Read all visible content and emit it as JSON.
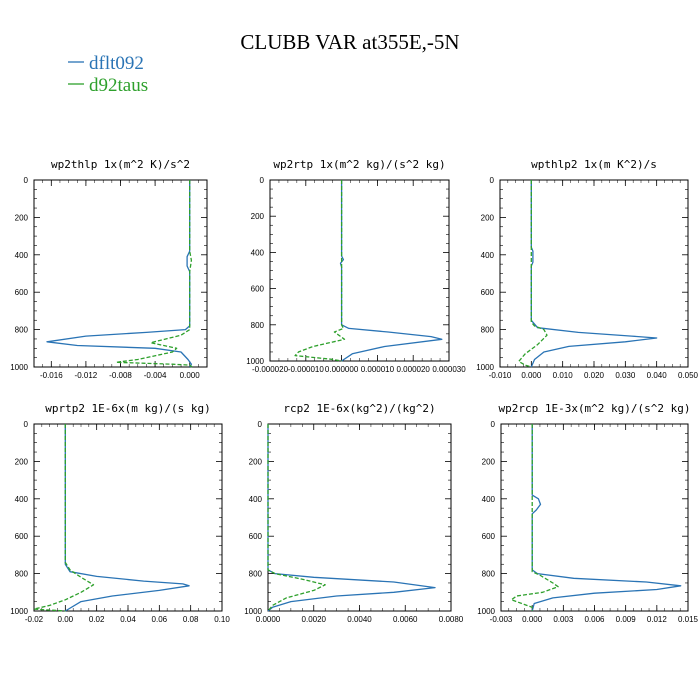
{
  "title": "CLUBB VAR at355E,-5N",
  "colors": {
    "dflt092": "#2a74b5",
    "d92taus": "#2ea02c",
    "axis": "#000000"
  },
  "legend": [
    {
      "name": "dflt092",
      "color": "#2a74b5",
      "style": "solid"
    },
    {
      "name": "d92taus",
      "color": "#2ea02c",
      "style": "dashed"
    }
  ],
  "chart_data": [
    {
      "type": "line",
      "title": "wp2thlp   1x(m^2 K)/s^2",
      "xlim": [
        -0.018,
        0.002
      ],
      "ylim": [
        1000,
        0
      ],
      "y_inverted": true,
      "xticks": [
        "-0.016",
        "-0.012",
        "-0.008",
        "-0.004",
        "0.000"
      ],
      "xtick_values": [
        -0.016,
        -0.012,
        -0.008,
        -0.004,
        0.0
      ],
      "yticks": [
        "0",
        "200",
        "400",
        "600",
        "800",
        "1000"
      ],
      "series": [
        {
          "name": "dflt092",
          "points": [
            [
              0,
              0
            ],
            [
              0,
              380
            ],
            [
              -0.0003,
              410
            ],
            [
              -0.0003,
              460
            ],
            [
              0,
              490
            ],
            [
              0,
              780
            ],
            [
              -0.0005,
              800
            ],
            [
              -0.005,
              815
            ],
            [
              -0.012,
              835
            ],
            [
              -0.0165,
              865
            ],
            [
              -0.013,
              885
            ],
            [
              -0.004,
              900
            ],
            [
              -0.001,
              920
            ],
            [
              -0.0002,
              960
            ],
            [
              0.0002,
              985
            ],
            [
              0,
              1000
            ]
          ]
        },
        {
          "name": "d92taus",
          "points": [
            [
              0,
              0
            ],
            [
              0,
              380
            ],
            [
              0.0002,
              430
            ],
            [
              0,
              490
            ],
            [
              0,
              800
            ],
            [
              -0.001,
              830
            ],
            [
              -0.0045,
              870
            ],
            [
              -0.0015,
              900
            ],
            [
              -0.002,
              920
            ],
            [
              -0.006,
              960
            ],
            [
              -0.0085,
              975
            ],
            [
              -0.002,
              985
            ],
            [
              0,
              990
            ],
            [
              0.0003,
              1000
            ]
          ]
        }
      ]
    },
    {
      "type": "line",
      "title": "wp2rtp   1x(m^2 kg)/(s^2 kg)",
      "xlim": [
        -2e-05,
        3e-05
      ],
      "ylim": [
        1000,
        0
      ],
      "y_inverted": true,
      "xticks": [
        "-0.000020",
        "-0.000010",
        "0.000000",
        "0.000010",
        "0.000020",
        "0.000030"
      ],
      "xtick_values": [
        -2e-05,
        -1e-05,
        0.0,
        1e-05,
        2e-05,
        3e-05
      ],
      "yticks": [
        "0",
        "200",
        "400",
        "600",
        "800",
        "1000"
      ],
      "series": [
        {
          "name": "dflt092",
          "points": [
            [
              0,
              0
            ],
            [
              0,
              420
            ],
            [
              5e-07,
              440
            ],
            [
              -3e-07,
              460
            ],
            [
              0,
              480
            ],
            [
              0,
              800
            ],
            [
              2e-06,
              820
            ],
            [
              1.3e-05,
              840
            ],
            [
              2.5e-05,
              865
            ],
            [
              2.8e-05,
              880
            ],
            [
              1.2e-05,
              920
            ],
            [
              3e-06,
              960
            ],
            [
              0,
              1000
            ]
          ]
        },
        {
          "name": "d92taus",
          "points": [
            [
              0,
              0
            ],
            [
              0,
              800
            ],
            [
              5e-07,
              820
            ],
            [
              -2e-06,
              840
            ],
            [
              8e-07,
              880
            ],
            [
              -8e-06,
              920
            ],
            [
              -1.2e-05,
              950
            ],
            [
              -1.3e-05,
              970
            ],
            [
              -3e-06,
              990
            ],
            [
              0,
              1000
            ]
          ]
        }
      ]
    },
    {
      "type": "line",
      "title": "wpthlp2   1x(m K^2)/s",
      "xlim": [
        -0.01,
        0.05
      ],
      "ylim": [
        1000,
        0
      ],
      "y_inverted": true,
      "xticks": [
        "-0.010",
        "0.000",
        "0.010",
        "0.020",
        "0.030",
        "0.040",
        "0.050"
      ],
      "xtick_values": [
        -0.01,
        0.0,
        0.01,
        0.02,
        0.03,
        0.04,
        0.05
      ],
      "yticks": [
        "0",
        "200",
        "400",
        "600",
        "800",
        "1000"
      ],
      "series": [
        {
          "name": "dflt092",
          "points": [
            [
              0,
              0
            ],
            [
              0,
              360
            ],
            [
              0.0005,
              380
            ],
            [
              0.0005,
              440
            ],
            [
              0,
              460
            ],
            [
              0,
              750
            ],
            [
              0.002,
              790
            ],
            [
              0.015,
              815
            ],
            [
              0.032,
              835
            ],
            [
              0.04,
              845
            ],
            [
              0.03,
              865
            ],
            [
              0.012,
              890
            ],
            [
              0.004,
              920
            ],
            [
              0.001,
              960
            ],
            [
              0,
              1000
            ]
          ]
        },
        {
          "name": "d92taus",
          "points": [
            [
              0,
              0
            ],
            [
              0,
              760
            ],
            [
              0.001,
              780
            ],
            [
              0.004,
              800
            ],
            [
              0.005,
              830
            ],
            [
              0.002,
              880
            ],
            [
              -0.002,
              930
            ],
            [
              -0.004,
              970
            ],
            [
              -0.002,
              990
            ],
            [
              0,
              1000
            ]
          ]
        }
      ]
    },
    {
      "type": "line",
      "title": "wprtp2   1E-6x(m kg)/(s kg)",
      "xlim": [
        -0.02,
        0.1
      ],
      "ylim": [
        1000,
        0
      ],
      "y_inverted": true,
      "xticks": [
        "-0.02",
        "0.00",
        "0.02",
        "0.04",
        "0.06",
        "0.08",
        "0.10"
      ],
      "xtick_values": [
        -0.02,
        0.0,
        0.02,
        0.04,
        0.06,
        0.08,
        0.1
      ],
      "yticks": [
        "0",
        "200",
        "400",
        "600",
        "800",
        "1000"
      ],
      "series": [
        {
          "name": "dflt092",
          "points": [
            [
              0,
              0
            ],
            [
              0,
              750
            ],
            [
              0.003,
              790
            ],
            [
              0.02,
              815
            ],
            [
              0.05,
              840
            ],
            [
              0.075,
              855
            ],
            [
              0.079,
              865
            ],
            [
              0.06,
              890
            ],
            [
              0.03,
              920
            ],
            [
              0.01,
              950
            ],
            [
              0,
              1000
            ]
          ]
        },
        {
          "name": "d92taus",
          "points": [
            [
              0,
              0
            ],
            [
              0,
              740
            ],
            [
              0.003,
              780
            ],
            [
              0.01,
              820
            ],
            [
              0.018,
              860
            ],
            [
              0.01,
              900
            ],
            [
              0,
              940
            ],
            [
              -0.01,
              970
            ],
            [
              -0.02,
              990
            ],
            [
              0,
              1000
            ]
          ]
        }
      ]
    },
    {
      "type": "line",
      "title": "rcp2   1E-6x(kg^2)/(kg^2)",
      "xlim": [
        0,
        0.008
      ],
      "ylim": [
        1000,
        0
      ],
      "y_inverted": true,
      "xticks": [
        "0.0000",
        "0.0020",
        "0.0040",
        "0.0060",
        "0.0080"
      ],
      "xtick_values": [
        0.0,
        0.002,
        0.004,
        0.006,
        0.008
      ],
      "yticks": [
        "0",
        "200",
        "400",
        "600",
        "800",
        "1000"
      ],
      "series": [
        {
          "name": "dflt092",
          "points": [
            [
              0,
              0
            ],
            [
              0,
              780
            ],
            [
              0.0003,
              800
            ],
            [
              0.002,
              820
            ],
            [
              0.0055,
              845
            ],
            [
              0.0073,
              875
            ],
            [
              0.0055,
              900
            ],
            [
              0.003,
              920
            ],
            [
              0.001,
              950
            ],
            [
              0.0002,
              980
            ],
            [
              0,
              1000
            ]
          ]
        },
        {
          "name": "d92taus",
          "points": [
            [
              0,
              0
            ],
            [
              0,
              780
            ],
            [
              0.0003,
              800
            ],
            [
              0.0015,
              830
            ],
            [
              0.0025,
              860
            ],
            [
              0.002,
              890
            ],
            [
              0.0008,
              930
            ],
            [
              0.0002,
              970
            ],
            [
              0,
              1000
            ]
          ]
        }
      ]
    },
    {
      "type": "line",
      "title": "wp2rcp   1E-3x(m^2 kg)/(s^2 kg)",
      "xlim": [
        -0.003,
        0.015
      ],
      "ylim": [
        1000,
        0
      ],
      "y_inverted": true,
      "xticks": [
        "-0.003",
        "0.000",
        "0.003",
        "0.006",
        "0.009",
        "0.012",
        "0.015"
      ],
      "xtick_values": [
        -0.003,
        0.0,
        0.003,
        0.006,
        0.009,
        0.012,
        0.015
      ],
      "yticks": [
        "0",
        "200",
        "400",
        "600",
        "800",
        "1000"
      ],
      "series": [
        {
          "name": "dflt092",
          "points": [
            [
              0,
              0
            ],
            [
              0,
              380
            ],
            [
              0.0006,
              400
            ],
            [
              0.0008,
              430
            ],
            [
              0.0004,
              460
            ],
            [
              0,
              480
            ],
            [
              0,
              780
            ],
            [
              0.0005,
              800
            ],
            [
              0.004,
              825
            ],
            [
              0.011,
              845
            ],
            [
              0.0143,
              865
            ],
            [
              0.012,
              885
            ],
            [
              0.006,
              905
            ],
            [
              0.002,
              930
            ],
            [
              0.0002,
              960
            ],
            [
              0,
              1000
            ]
          ]
        },
        {
          "name": "d92taus",
          "points": [
            [
              0,
              0
            ],
            [
              0,
              790
            ],
            [
              0.0008,
              810
            ],
            [
              0.002,
              850
            ],
            [
              0.0025,
              870
            ],
            [
              0.001,
              900
            ],
            [
              -0.0015,
              920
            ],
            [
              -0.002,
              940
            ],
            [
              -0.001,
              960
            ],
            [
              0,
              980
            ],
            [
              0,
              1000
            ]
          ]
        }
      ]
    }
  ]
}
